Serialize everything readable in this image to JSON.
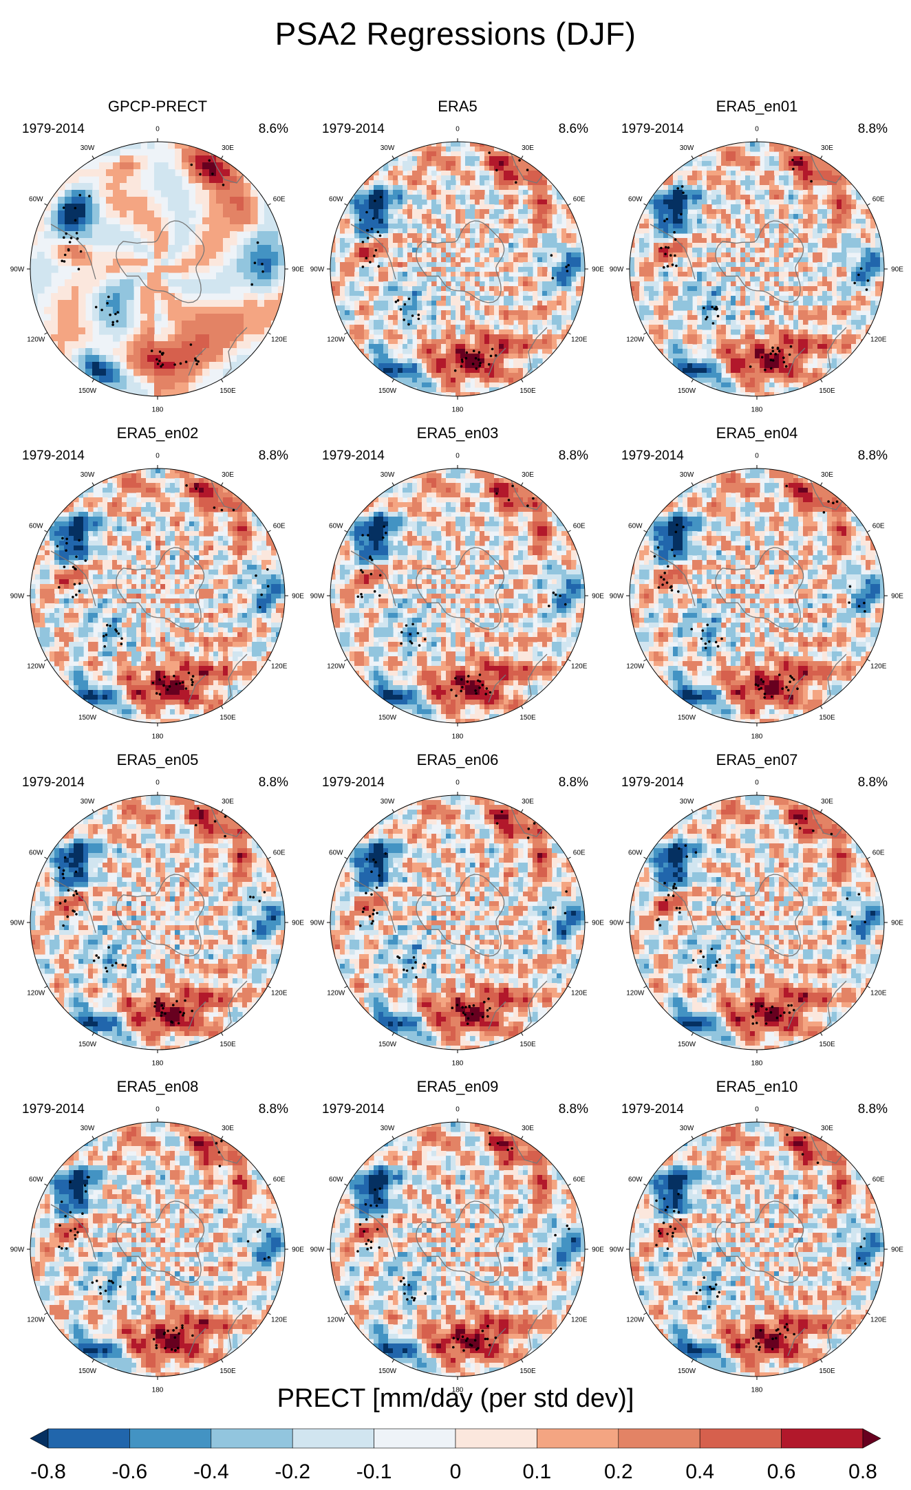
{
  "chart_data": {
    "type": "heatmap",
    "title": "PSA2 Regressions (DJF)",
    "projection": "South polar stereographic",
    "variable_label": "PRECT [mm/day (per std dev)]",
    "colorbar": {
      "levels": [
        "-0.8",
        "-0.6",
        "-0.4",
        "-0.2",
        "-0.1",
        "0",
        "0.1",
        "0.2",
        "0.4",
        "0.6",
        "0.8"
      ],
      "colors": [
        "#053061",
        "#2166ac",
        "#4393c3",
        "#92c5de",
        "#d1e5f0",
        "#eef3f8",
        "#fbe7dd",
        "#f4a582",
        "#e38365",
        "#d6604d",
        "#b2182b",
        "#67001f"
      ]
    },
    "longitude_labels": [
      "0",
      "30E",
      "60E",
      "90E",
      "120E",
      "150E",
      "180",
      "150W",
      "120W",
      "90W",
      "60W",
      "30W"
    ],
    "panels": [
      {
        "title": "GPCP-PRECT",
        "period": "1979-2014",
        "variance": "8.6%"
      },
      {
        "title": "ERA5",
        "period": "1979-2014",
        "variance": "8.6%"
      },
      {
        "title": "ERA5_en01",
        "period": "1979-2014",
        "variance": "8.8%"
      },
      {
        "title": "ERA5_en02",
        "period": "1979-2014",
        "variance": "8.8%"
      },
      {
        "title": "ERA5_en03",
        "period": "1979-2014",
        "variance": "8.8%"
      },
      {
        "title": "ERA5_en04",
        "period": "1979-2014",
        "variance": "8.8%"
      },
      {
        "title": "ERA5_en05",
        "period": "1979-2014",
        "variance": "8.8%"
      },
      {
        "title": "ERA5_en06",
        "period": "1979-2014",
        "variance": "8.8%"
      },
      {
        "title": "ERA5_en07",
        "period": "1979-2014",
        "variance": "8.8%"
      },
      {
        "title": "ERA5_en08",
        "period": "1979-2014",
        "variance": "8.8%"
      },
      {
        "title": "ERA5_en09",
        "period": "1979-2014",
        "variance": "8.8%"
      },
      {
        "title": "ERA5_en10",
        "period": "1979-2014",
        "variance": "8.8%"
      }
    ]
  }
}
